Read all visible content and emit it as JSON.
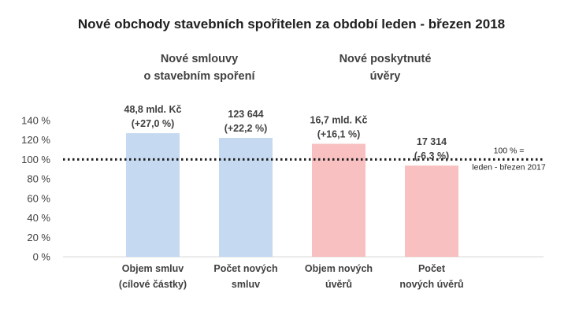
{
  "chart_data": {
    "type": "bar",
    "title": "Nové obchody stavebních spořitelen za období leden - březen 2018",
    "groups": [
      {
        "lines": [
          "Nové smlouvy",
          "o stavebním spoření"
        ]
      },
      {
        "lines": [
          "Nové poskytnuté",
          "úvěry"
        ]
      }
    ],
    "categories": [
      [
        "Objem smluv",
        "(cílové částky)"
      ],
      [
        "Počet  nových",
        "smluv"
      ],
      [
        "Objem nových",
        "úvěrů"
      ],
      [
        "Počet",
        "nových úvěrů"
      ]
    ],
    "values": [
      127.0,
      122.2,
      116.1,
      93.7
    ],
    "data_labels": [
      [
        "48,8 mld. Kč",
        "(+27,0 %)"
      ],
      [
        "123 644",
        "(+22,2 %)"
      ],
      [
        "16,7 mld. Kč",
        "(+16,1 %)"
      ],
      [
        "17 314",
        "(-6,3 %)"
      ]
    ],
    "colors": [
      "#c5d9f1",
      "#c5d9f1",
      "#f8c0c0",
      "#f8c0c0"
    ],
    "yticks": [
      "0 %",
      "20 %",
      "40 %",
      "60 %",
      "80 %",
      "100 %",
      "120 %",
      "140 %"
    ],
    "ylim": [
      0,
      140
    ],
    "reference": {
      "value": 100,
      "label_lines": [
        "100 % =",
        "leden - březen 2017"
      ]
    },
    "grid": false,
    "legend": "none"
  }
}
